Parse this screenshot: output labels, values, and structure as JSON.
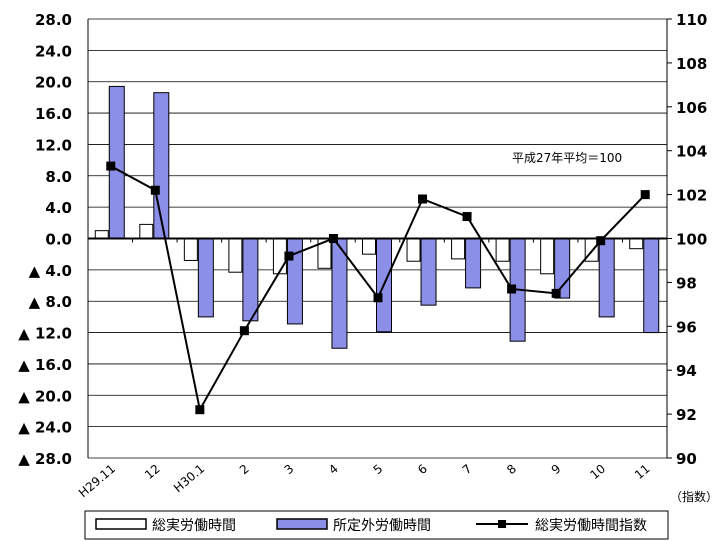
{
  "chart_data": {
    "type": "bar",
    "categories": [
      "H29.11",
      "12",
      "H30.1",
      "2",
      "3",
      "4",
      "5",
      "6",
      "7",
      "8",
      "9",
      "10",
      "11"
    ],
    "y_left": {
      "range": [
        -28,
        28
      ],
      "ticks": [
        -28,
        -24,
        -20,
        -16,
        -12,
        -8,
        -4,
        0,
        4,
        8,
        12,
        16,
        20,
        24,
        28
      ],
      "tick_labels": [
        "▲ 28.0",
        "▲ 24.0",
        "▲ 20.0",
        "▲ 16.0",
        "▲ 12.0",
        "▲ 8.0",
        "▲ 4.0",
        "0.0",
        "4.0",
        "8.0",
        "12.0",
        "16.0",
        "20.0",
        "24.0",
        "28.0"
      ]
    },
    "y_right": {
      "range": [
        90,
        110
      ],
      "ticks": [
        90,
        92,
        94,
        96,
        98,
        100,
        102,
        104,
        106,
        108,
        110
      ],
      "unit_label": "（指数）"
    },
    "series": [
      {
        "name": "総実労働時間",
        "type": "bar",
        "axis": "left",
        "color": "#ffffff",
        "values": [
          1.0,
          1.8,
          -2.8,
          -4.3,
          -4.5,
          -3.8,
          -2.0,
          -2.9,
          -2.6,
          -2.9,
          -4.5,
          -2.9,
          -1.3
        ]
      },
      {
        "name": "所定外労働時間",
        "type": "bar",
        "axis": "left",
        "color": "#8b8fe8",
        "values": [
          19.4,
          18.6,
          -10.0,
          -10.5,
          -10.9,
          -14.0,
          -11.9,
          -8.5,
          -6.3,
          -13.1,
          -7.6,
          -10.0,
          -12.0
        ]
      },
      {
        "name": "総実労働時間指数",
        "type": "line",
        "axis": "right",
        "color": "#000000",
        "values": [
          103.3,
          102.2,
          92.2,
          95.8,
          99.2,
          100.0,
          97.3,
          101.8,
          101.0,
          97.7,
          97.5,
          99.9,
          102.0
        ]
      }
    ],
    "annotation": "平成27年平均＝100",
    "grid": true,
    "legend": "bottom"
  }
}
